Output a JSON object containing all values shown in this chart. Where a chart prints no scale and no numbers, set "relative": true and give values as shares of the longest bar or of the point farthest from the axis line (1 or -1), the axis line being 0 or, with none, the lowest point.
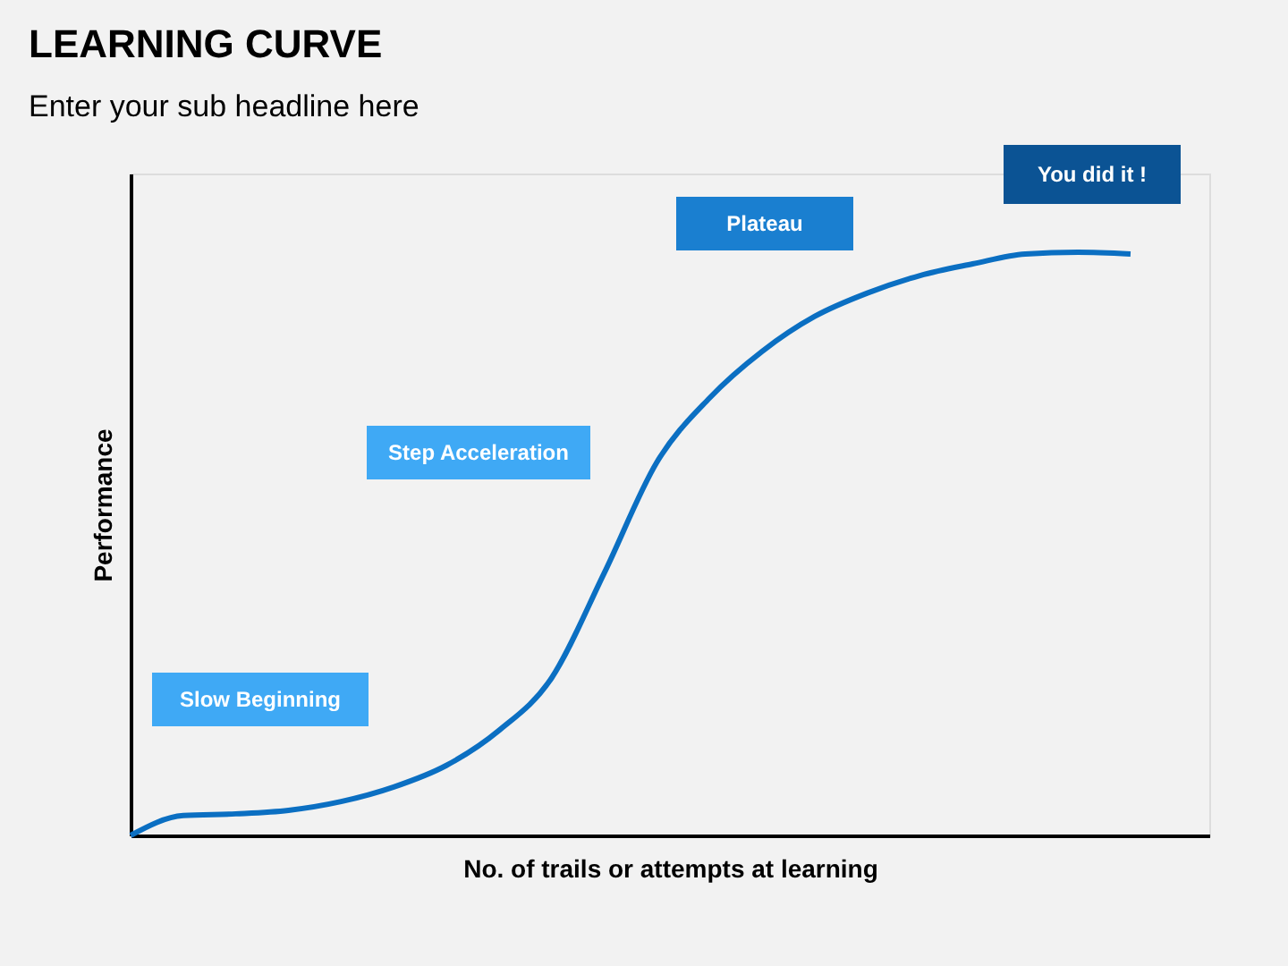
{
  "chart_data": {
    "type": "line",
    "title": "LEARNING CURVE",
    "subtitle": "Enter your sub headline here",
    "xlabel": "No. of trails or attempts at learning",
    "ylabel": "Performance",
    "relative": true,
    "grid": false,
    "marker": "none",
    "line_style": "solid",
    "categories": [
      null,
      null,
      null,
      null,
      null,
      null,
      null,
      null,
      null,
      null,
      null,
      null,
      null,
      null,
      null,
      null,
      null,
      null,
      null,
      null
    ],
    "series": [
      {
        "color": "#0b6fc2",
        "values": [
          0,
          0.034,
          0.037,
          0.043,
          0.058,
          0.083,
          0.12,
          0.18,
          0.27,
          0.45,
          0.64,
          0.75,
          0.83,
          0.89,
          0.93,
          0.96,
          0.98,
          0.997,
          1,
          0.997
        ]
      }
    ],
    "annotations": [
      "Slow Beginning",
      "Step Acceleration",
      "Plateau",
      "You did it !"
    ]
  }
}
